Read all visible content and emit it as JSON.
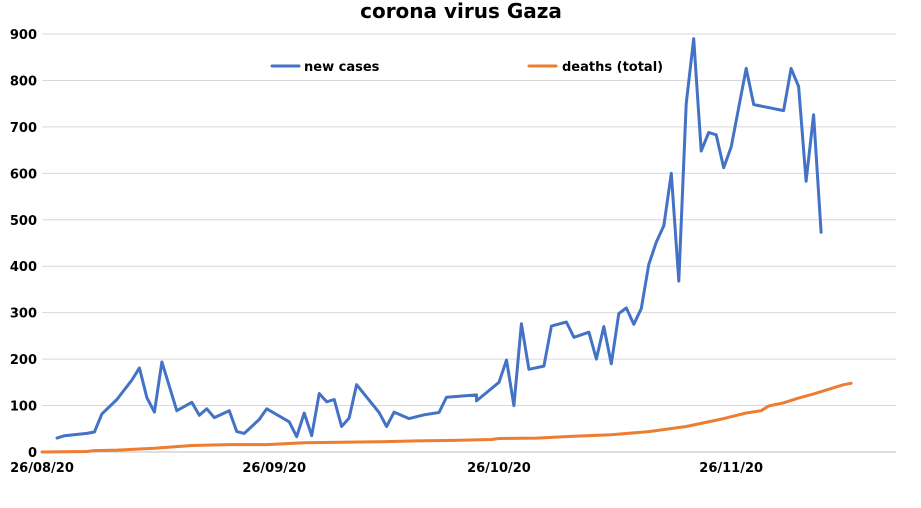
{
  "chart_data": {
    "type": "line",
    "title": "corona virus Gaza",
    "xlabel": "",
    "ylabel": "",
    "ylim": [
      0,
      900
    ],
    "yticks": [
      0,
      100,
      200,
      300,
      400,
      500,
      600,
      700,
      800,
      900
    ],
    "xlim": [
      "2020-08-26",
      "2020-12-18"
    ],
    "xtick_labels": [
      {
        "date": "2020-08-26",
        "label": "26/08/20"
      },
      {
        "date": "2020-09-26",
        "label": "26/09/20"
      },
      {
        "date": "2020-10-26",
        "label": "26/10/20"
      },
      {
        "date": "2020-11-26",
        "label": "26/11/20"
      }
    ],
    "grid": true,
    "legend": "top-center",
    "series": [
      {
        "name": "new cases",
        "color": "#4472C4",
        "points": [
          [
            "2020-08-28",
            30
          ],
          [
            "2020-08-29",
            35
          ],
          [
            "2020-09-01",
            40
          ],
          [
            "2020-09-02",
            43
          ],
          [
            "2020-09-03",
            82
          ],
          [
            "2020-09-05",
            113
          ],
          [
            "2020-09-07",
            155
          ],
          [
            "2020-09-08",
            181
          ],
          [
            "2020-09-09",
            117
          ],
          [
            "2020-09-10",
            86
          ],
          [
            "2020-09-11",
            194
          ],
          [
            "2020-09-13",
            89
          ],
          [
            "2020-09-15",
            107
          ],
          [
            "2020-09-16",
            79
          ],
          [
            "2020-09-17",
            93
          ],
          [
            "2020-09-18",
            74
          ],
          [
            "2020-09-20",
            89
          ],
          [
            "2020-09-21",
            44
          ],
          [
            "2020-09-22",
            40
          ],
          [
            "2020-09-24",
            70
          ],
          [
            "2020-09-25",
            93
          ],
          [
            "2020-09-28",
            65
          ],
          [
            "2020-09-29",
            33
          ],
          [
            "2020-09-30",
            84
          ],
          [
            "2020-10-01",
            35
          ],
          [
            "2020-10-02",
            126
          ],
          [
            "2020-10-03",
            108
          ],
          [
            "2020-10-04",
            113
          ],
          [
            "2020-10-05",
            55
          ],
          [
            "2020-10-06",
            73
          ],
          [
            "2020-10-07",
            145
          ],
          [
            "2020-10-10",
            85
          ],
          [
            "2020-10-11",
            55
          ],
          [
            "2020-10-12",
            86
          ],
          [
            "2020-10-14",
            72
          ],
          [
            "2020-10-16",
            80
          ],
          [
            "2020-10-18",
            85
          ],
          [
            "2020-10-19",
            118
          ],
          [
            "2020-10-23",
            123
          ],
          [
            "2020-10-23",
            110
          ],
          [
            "2020-10-26",
            150
          ],
          [
            "2020-10-27",
            198
          ],
          [
            "2020-10-28",
            100
          ],
          [
            "2020-10-29",
            276
          ],
          [
            "2020-10-30",
            178
          ],
          [
            "2020-11-01",
            185
          ],
          [
            "2020-11-02",
            271
          ],
          [
            "2020-11-04",
            280
          ],
          [
            "2020-11-05",
            247
          ],
          [
            "2020-11-07",
            258
          ],
          [
            "2020-11-08",
            200
          ],
          [
            "2020-11-09",
            270
          ],
          [
            "2020-11-10",
            190
          ],
          [
            "2020-11-11",
            298
          ],
          [
            "2020-11-12",
            310
          ],
          [
            "2020-11-13",
            275
          ],
          [
            "2020-11-14",
            309
          ],
          [
            "2020-11-15",
            404
          ],
          [
            "2020-11-16",
            452
          ],
          [
            "2020-11-17",
            487
          ],
          [
            "2020-11-18",
            600
          ],
          [
            "2020-11-19",
            368
          ],
          [
            "2020-11-20",
            750
          ],
          [
            "2020-11-21",
            890
          ],
          [
            "2020-11-22",
            648
          ],
          [
            "2020-11-23",
            688
          ],
          [
            "2020-11-24",
            683
          ],
          [
            "2020-11-25",
            612
          ],
          [
            "2020-11-26",
            657
          ],
          [
            "2020-11-28",
            826
          ],
          [
            "2020-11-29",
            748
          ],
          [
            "2020-12-03",
            735
          ],
          [
            "2020-12-04",
            826
          ],
          [
            "2020-12-05",
            787
          ],
          [
            "2020-12-06",
            583
          ],
          [
            "2020-12-07",
            726
          ],
          [
            "2020-12-08",
            473
          ]
        ]
      },
      {
        "name": "deaths (total)",
        "color": "#ED7D31",
        "points": [
          [
            "2020-08-26",
            0
          ],
          [
            "2020-09-01",
            1
          ],
          [
            "2020-09-02",
            3
          ],
          [
            "2020-09-05",
            4
          ],
          [
            "2020-09-10",
            8
          ],
          [
            "2020-09-15",
            14
          ],
          [
            "2020-09-20",
            16
          ],
          [
            "2020-09-25",
            16
          ],
          [
            "2020-09-30",
            20
          ],
          [
            "2020-10-05",
            21
          ],
          [
            "2020-10-10",
            22
          ],
          [
            "2020-10-15",
            24
          ],
          [
            "2020-10-20",
            25
          ],
          [
            "2020-10-25",
            27
          ],
          [
            "2020-10-26",
            29
          ],
          [
            "2020-10-31",
            30
          ],
          [
            "2020-11-05",
            34
          ],
          [
            "2020-11-10",
            37
          ],
          [
            "2020-11-15",
            44
          ],
          [
            "2020-11-20",
            55
          ],
          [
            "2020-11-25",
            72
          ],
          [
            "2020-11-28",
            84
          ],
          [
            "2020-11-30",
            89
          ],
          [
            "2020-12-01",
            99
          ],
          [
            "2020-12-03",
            106
          ],
          [
            "2020-12-05",
            116
          ],
          [
            "2020-12-07",
            125
          ],
          [
            "2020-12-09",
            135
          ],
          [
            "2020-12-11",
            145
          ],
          [
            "2020-12-12",
            148
          ]
        ]
      }
    ]
  }
}
